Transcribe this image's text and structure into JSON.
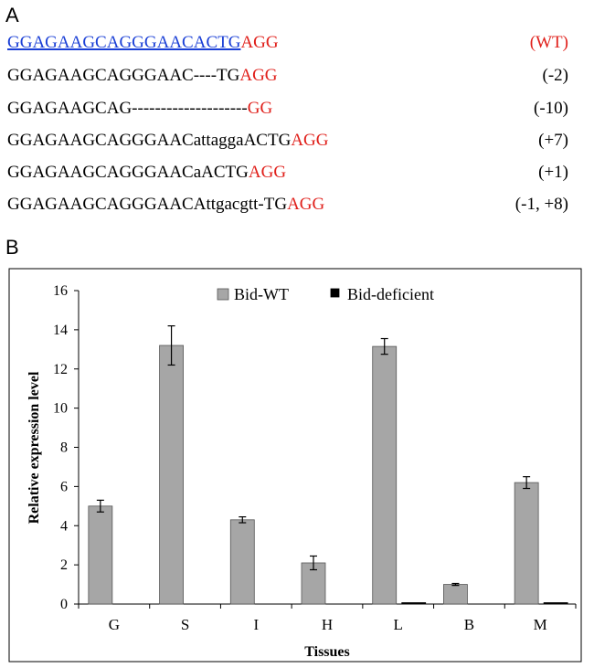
{
  "panel_a": {
    "label": "A",
    "sequences": [
      {
        "seq": "GGAGAAGCAGGGAACACTG",
        "pam": "AGG",
        "label": "(WT)"
      },
      {
        "seq": "GGAGAAGCAGGGAAC----TG",
        "pam": "AGG",
        "label": "(-2)"
      },
      {
        "seq": "GGAGAAGCAG--------------------",
        "pam": "GG",
        "label": "(-10)"
      },
      {
        "seq": "GGAGAAGCAGGGAACattaggaACTG",
        "pam": "AGG",
        "label": "(+7)"
      },
      {
        "seq": "GGAGAAGCAGGGAACaACTG",
        "pam": "AGG",
        "label": "(+1)"
      },
      {
        "seq": "GGAGAAGCAGGGAACAttgacgtt-TG",
        "pam": "AGG",
        "label": "(-1, +8)"
      }
    ]
  },
  "panel_b": {
    "label": "B"
  },
  "chart_data": {
    "type": "bar",
    "title": "",
    "xlabel": "Tissues",
    "ylabel": "Relative expression level",
    "ylim": [
      0,
      16
    ],
    "yticks": [
      "0",
      "2",
      "4",
      "6",
      "8",
      "10",
      "12",
      "14",
      "16"
    ],
    "categories": [
      "G",
      "S",
      "I",
      "H",
      "L",
      "B",
      "M"
    ],
    "legend_position": "top-center",
    "series": [
      {
        "name": "Bid-WT",
        "color": "#a6a6a6",
        "values": [
          5.0,
          13.2,
          4.3,
          2.1,
          13.15,
          1.0,
          6.2
        ],
        "errors": [
          0.3,
          1.0,
          0.15,
          0.35,
          0.4,
          0.05,
          0.3
        ]
      },
      {
        "name": "Bid-deficient",
        "color": "#000000",
        "values": [
          0.0,
          0.0,
          0.0,
          0.0,
          0.03,
          0.0,
          0.05
        ],
        "errors": [
          0,
          0,
          0,
          0,
          0,
          0,
          0
        ]
      }
    ]
  }
}
